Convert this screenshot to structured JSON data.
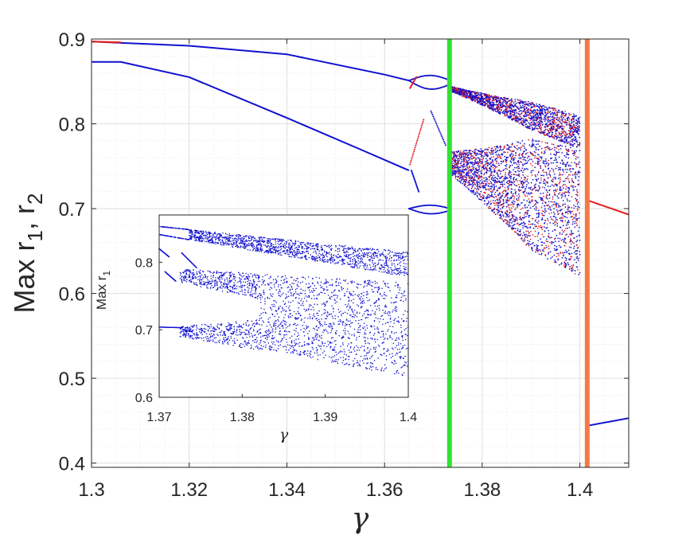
{
  "chart_data": [
    {
      "type": "scatter",
      "title": "",
      "xlabel": "γ",
      "ylabel_parts": {
        "base": "Max r",
        "sub1": "1",
        "sep": ", r",
        "sub2": "2"
      },
      "xlim": [
        1.3,
        1.41
      ],
      "ylim": [
        0.395,
        0.9
      ],
      "x_ticks": [
        1.3,
        1.32,
        1.34,
        1.36,
        1.38,
        1.4
      ],
      "x_tick_labels": [
        "1.3",
        "1.32",
        "1.34",
        "1.36",
        "1.38",
        "1.4"
      ],
      "y_ticks": [
        0.4,
        0.5,
        0.6,
        0.7,
        0.8,
        0.9
      ],
      "y_tick_labels": [
        "0.4",
        "0.5",
        "0.6",
        "0.7",
        "0.8",
        "0.9"
      ],
      "grid": true,
      "minor_grid": true,
      "series": [
        {
          "role": "r1-upper-branch",
          "color": "#1010d0",
          "points": [
            [
              1.3,
              0.897
            ],
            [
              1.32,
              0.892
            ],
            [
              1.34,
              0.882
            ],
            [
              1.36,
              0.858
            ],
            [
              1.365,
              0.851
            ]
          ]
        },
        {
          "role": "r1-lower-branch",
          "color": "#1010d0",
          "points": [
            [
              1.3,
              0.873
            ],
            [
              1.306,
              0.873
            ],
            [
              1.32,
              0.855
            ],
            [
              1.34,
              0.807
            ],
            [
              1.355,
              0.77
            ],
            [
              1.365,
              0.745
            ]
          ]
        },
        {
          "role": "r2-tail",
          "color": "#e02020",
          "points": [
            [
              1.4015,
              0.71
            ],
            [
              1.41,
              0.693
            ]
          ]
        },
        {
          "role": "post-crisis-branch",
          "color": "#1010d0",
          "points": [
            [
              1.4015,
              0.444
            ],
            [
              1.41,
              0.453
            ]
          ]
        }
      ],
      "vertical_lines": [
        {
          "x": 1.3733,
          "color": "#2ee52e"
        },
        {
          "x": 1.4015,
          "color": "#f47a44"
        }
      ],
      "chaotic_bands": [
        {
          "x_range": [
            1.373,
            1.4
          ],
          "y_top": [
            0.853,
            0.81
          ],
          "y_bottom": [
            0.832,
            0.77
          ]
        },
        {
          "x_range": [
            1.373,
            1.4
          ],
          "y_top": [
            0.805,
            0.77
          ],
          "y_bottom": [
            0.705,
            0.62
          ]
        }
      ]
    },
    {
      "type": "scatter",
      "title": "inset",
      "xlabel": "γ",
      "ylabel_parts": {
        "base": "Max r",
        "sub1": "1"
      },
      "xlim": [
        1.37,
        1.4
      ],
      "ylim": [
        0.6,
        0.87
      ],
      "x_ticks": [
        1.37,
        1.38,
        1.39,
        1.4
      ],
      "x_tick_labels": [
        "1.37",
        "1.38",
        "1.39",
        "1.4"
      ],
      "y_ticks": [
        0.6,
        0.7,
        0.8
      ],
      "y_tick_labels": [
        "0.6",
        "0.7",
        "0.8"
      ],
      "grid": false,
      "series": [
        {
          "role": "r1-chaotic-attractor",
          "color": "#1010d0"
        }
      ]
    }
  ]
}
